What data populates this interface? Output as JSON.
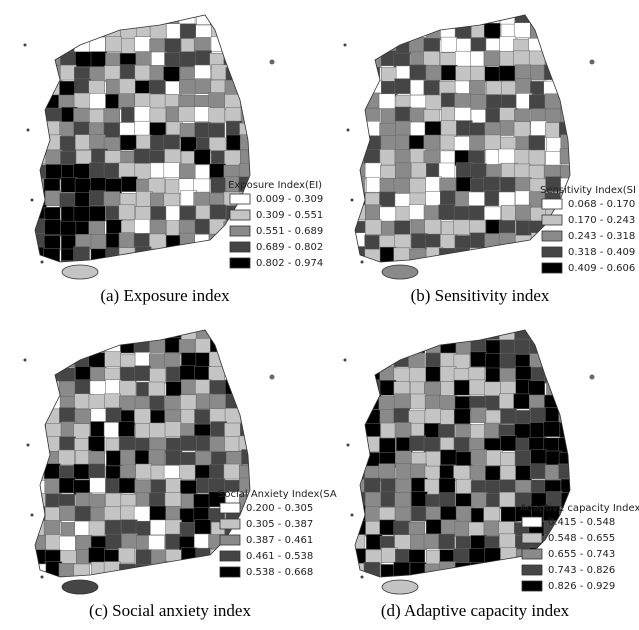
{
  "panels": [
    {
      "caption": "(a)  Exposure  index",
      "legend_title": "Exposure Index(EI)",
      "legend": [
        {
          "label": "0.009 - 0.309",
          "color": "#ffffff"
        },
        {
          "label": "0.309 - 0.551",
          "color": "#c4c4c4"
        },
        {
          "label": "0.551 - 0.689",
          "color": "#8a8a8a"
        },
        {
          "label": "0.689 - 0.802",
          "color": "#454545"
        },
        {
          "label": "0.802 - 0.974",
          "color": "#000000"
        }
      ]
    },
    {
      "caption": "(b)  Sensitivity  index",
      "legend_title": "Sensitivity Index(SI",
      "legend": [
        {
          "label": "0.068 - 0.170",
          "color": "#ffffff"
        },
        {
          "label": "0.170 - 0.243",
          "color": "#c4c4c4"
        },
        {
          "label": "0.243 - 0.318",
          "color": "#8a8a8a"
        },
        {
          "label": "0.318 - 0.409",
          "color": "#454545"
        },
        {
          "label": "0.409 - 0.606",
          "color": "#000000"
        }
      ]
    },
    {
      "caption": "(c)  Social  anxiety  index",
      "legend_title": "Social Anxiety Index(SA",
      "legend": [
        {
          "label": "0.200 - 0.305",
          "color": "#ffffff"
        },
        {
          "label": "0.305 - 0.387",
          "color": "#c4c4c4"
        },
        {
          "label": "0.387 - 0.461",
          "color": "#8a8a8a"
        },
        {
          "label": "0.461 - 0.538",
          "color": "#454545"
        },
        {
          "label": "0.538 - 0.668",
          "color": "#000000"
        }
      ]
    },
    {
      "caption": "(d)  Adaptive  capacity  index",
      "legend_title": "Adaptive capacity Index(A",
      "legend": [
        {
          "label": "0.415 - 0.548",
          "color": "#ffffff"
        },
        {
          "label": "0.548 - 0.655",
          "color": "#c4c4c4"
        },
        {
          "label": "0.655 - 0.743",
          "color": "#8a8a8a"
        },
        {
          "label": "0.743 - 0.826",
          "color": "#454545"
        },
        {
          "label": "0.826 - 0.929",
          "color": "#000000"
        }
      ]
    }
  ]
}
